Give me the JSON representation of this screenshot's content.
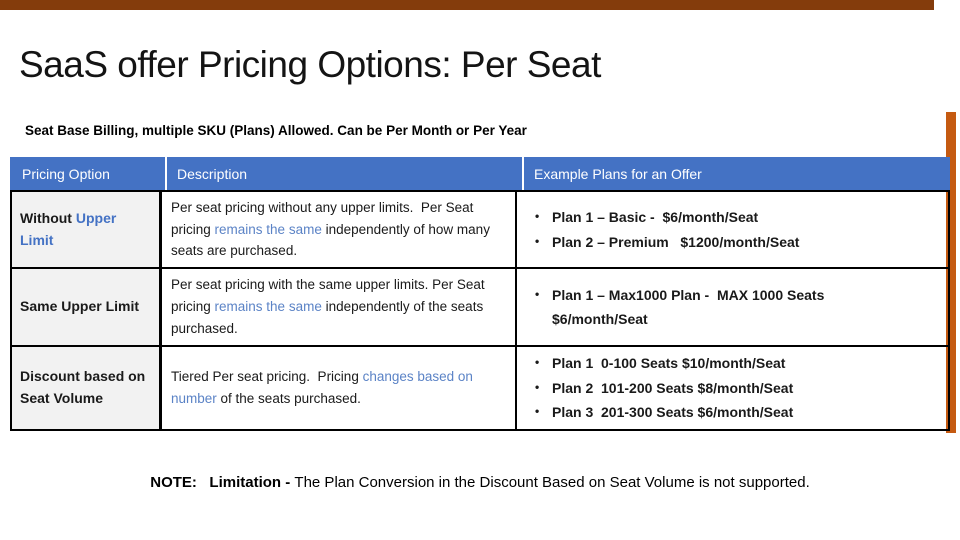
{
  "slide": {
    "title": "SaaS offer Pricing Options: Per Seat",
    "subtitle": "Seat Base Billing, multiple SKU (Plans) Allowed. Can be Per Month or Per Year",
    "note": {
      "bold": "NOTE:   Limitation - ",
      "rest": "The Plan Conversion in the Discount Based on Seat Volume is not supported."
    }
  },
  "colors": {
    "header_bg": "#4472C4",
    "header_text": "#FFFFFF",
    "option_col_bg": "#F2F2F2",
    "blue_text": "#5B83C6",
    "blue_bold": "#4472C4",
    "top_bar": "#843C0C",
    "right_bar": "#C55A11",
    "table_border": "#000000"
  },
  "table": {
    "headers": [
      "Pricing Option",
      "Description",
      "Example Plans for an Offer"
    ],
    "rows": [
      {
        "option": [
          {
            "t": "Without ",
            "s": "bold"
          },
          {
            "t": "Upper Limit",
            "s": "bold-blue"
          }
        ],
        "description": [
          {
            "t": "Per seat pricing without any upper limits.  Per Seat pricing "
          },
          {
            "t": "remains the same",
            "s": "blue"
          },
          {
            "t": " independently of how many seats are purchased."
          }
        ],
        "examples": [
          "Plan 1 – Basic -  $6/month/Seat",
          "Plan 2 – Premium   $1200/month/Seat"
        ]
      },
      {
        "option": [
          {
            "t": "Same Upper Limit",
            "s": "bold"
          }
        ],
        "description": [
          {
            "t": "Per seat pricing with the same upper limits. Per Seat pricing "
          },
          {
            "t": "remains the same",
            "s": "blue"
          },
          {
            "t": " independently of the seats purchased."
          }
        ],
        "examples": [
          "Plan 1 – Max1000 Plan -  MAX 1000 Seats $6/month/Seat"
        ]
      },
      {
        "option": [
          {
            "t": "Discount based on Seat Volume",
            "s": "bold"
          }
        ],
        "description": [
          {
            "t": "Tiered Per seat pricing.  Pricing "
          },
          {
            "t": "changes based on number",
            "s": "blue"
          },
          {
            "t": " of the seats purchased."
          }
        ],
        "examples": [
          "Plan 1  0-100 Seats $10/month/Seat",
          "Plan 2  101-200 Seats $8/month/Seat",
          "Plan 3  201-300 Seats $6/month/Seat"
        ]
      }
    ]
  }
}
